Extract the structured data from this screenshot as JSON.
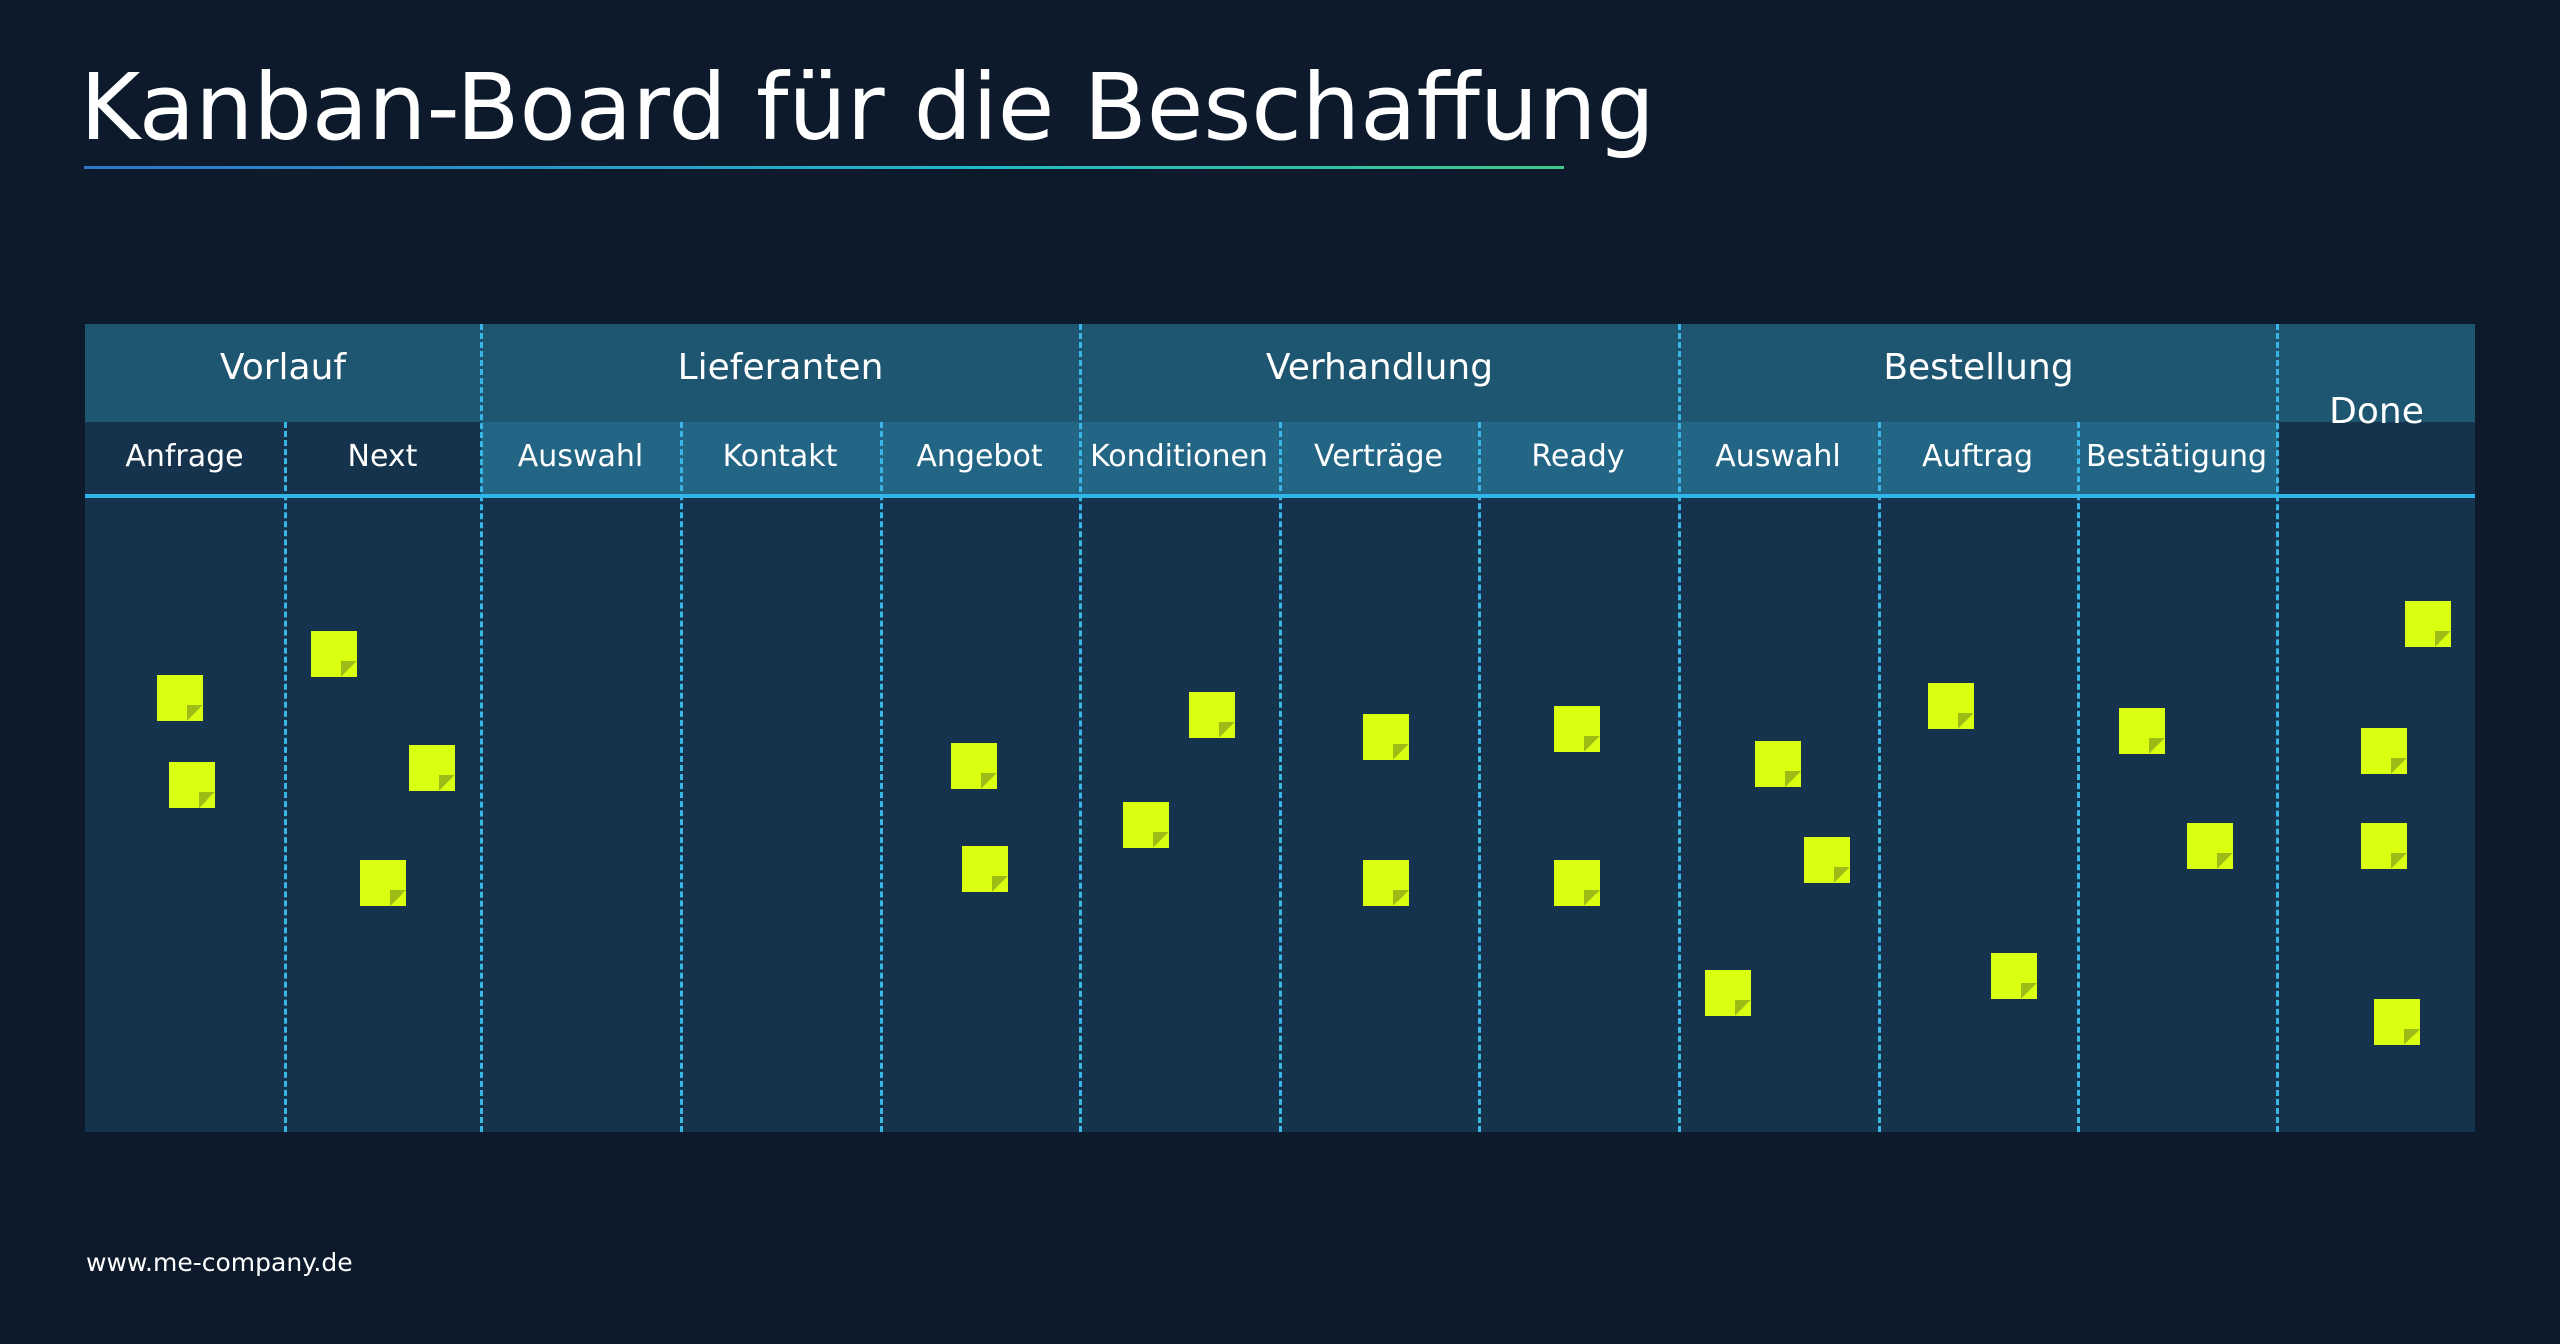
{
  "title": "Kanban-Board für die Beschaffung",
  "colors": {
    "background": "#0c1a2b",
    "board": "#15334d",
    "header": "#1e5571",
    "accent_line": "#2fb6e8",
    "sticky_note": "#dbff10"
  },
  "groups": [
    {
      "label": "Vorlauf",
      "subcolumns": [
        "Anfrage",
        "Next"
      ]
    },
    {
      "label": "Lieferanten",
      "subcolumns": [
        "Auswahl",
        "Kontakt",
        "Angebot"
      ]
    },
    {
      "label": "Verhandlung",
      "subcolumns": [
        "Konditionen",
        "Verträge",
        "Ready"
      ]
    },
    {
      "label": "Bestellung",
      "subcolumns": [
        "Auswahl",
        "Auftrag",
        "Bestätigung"
      ]
    }
  ],
  "done_label": "Done",
  "note_counts": {
    "Anfrage": 2,
    "Next": 3,
    "Lieferanten Auswahl": 0,
    "Kontakt": 0,
    "Angebot": 2,
    "Konditionen": 2,
    "Verträge": 2,
    "Ready": 2,
    "Bestellung Auswahl": 3,
    "Auftrag": 2,
    "Bestätigung": 2,
    "Done": 4
  },
  "footer": "www.me-company.de"
}
